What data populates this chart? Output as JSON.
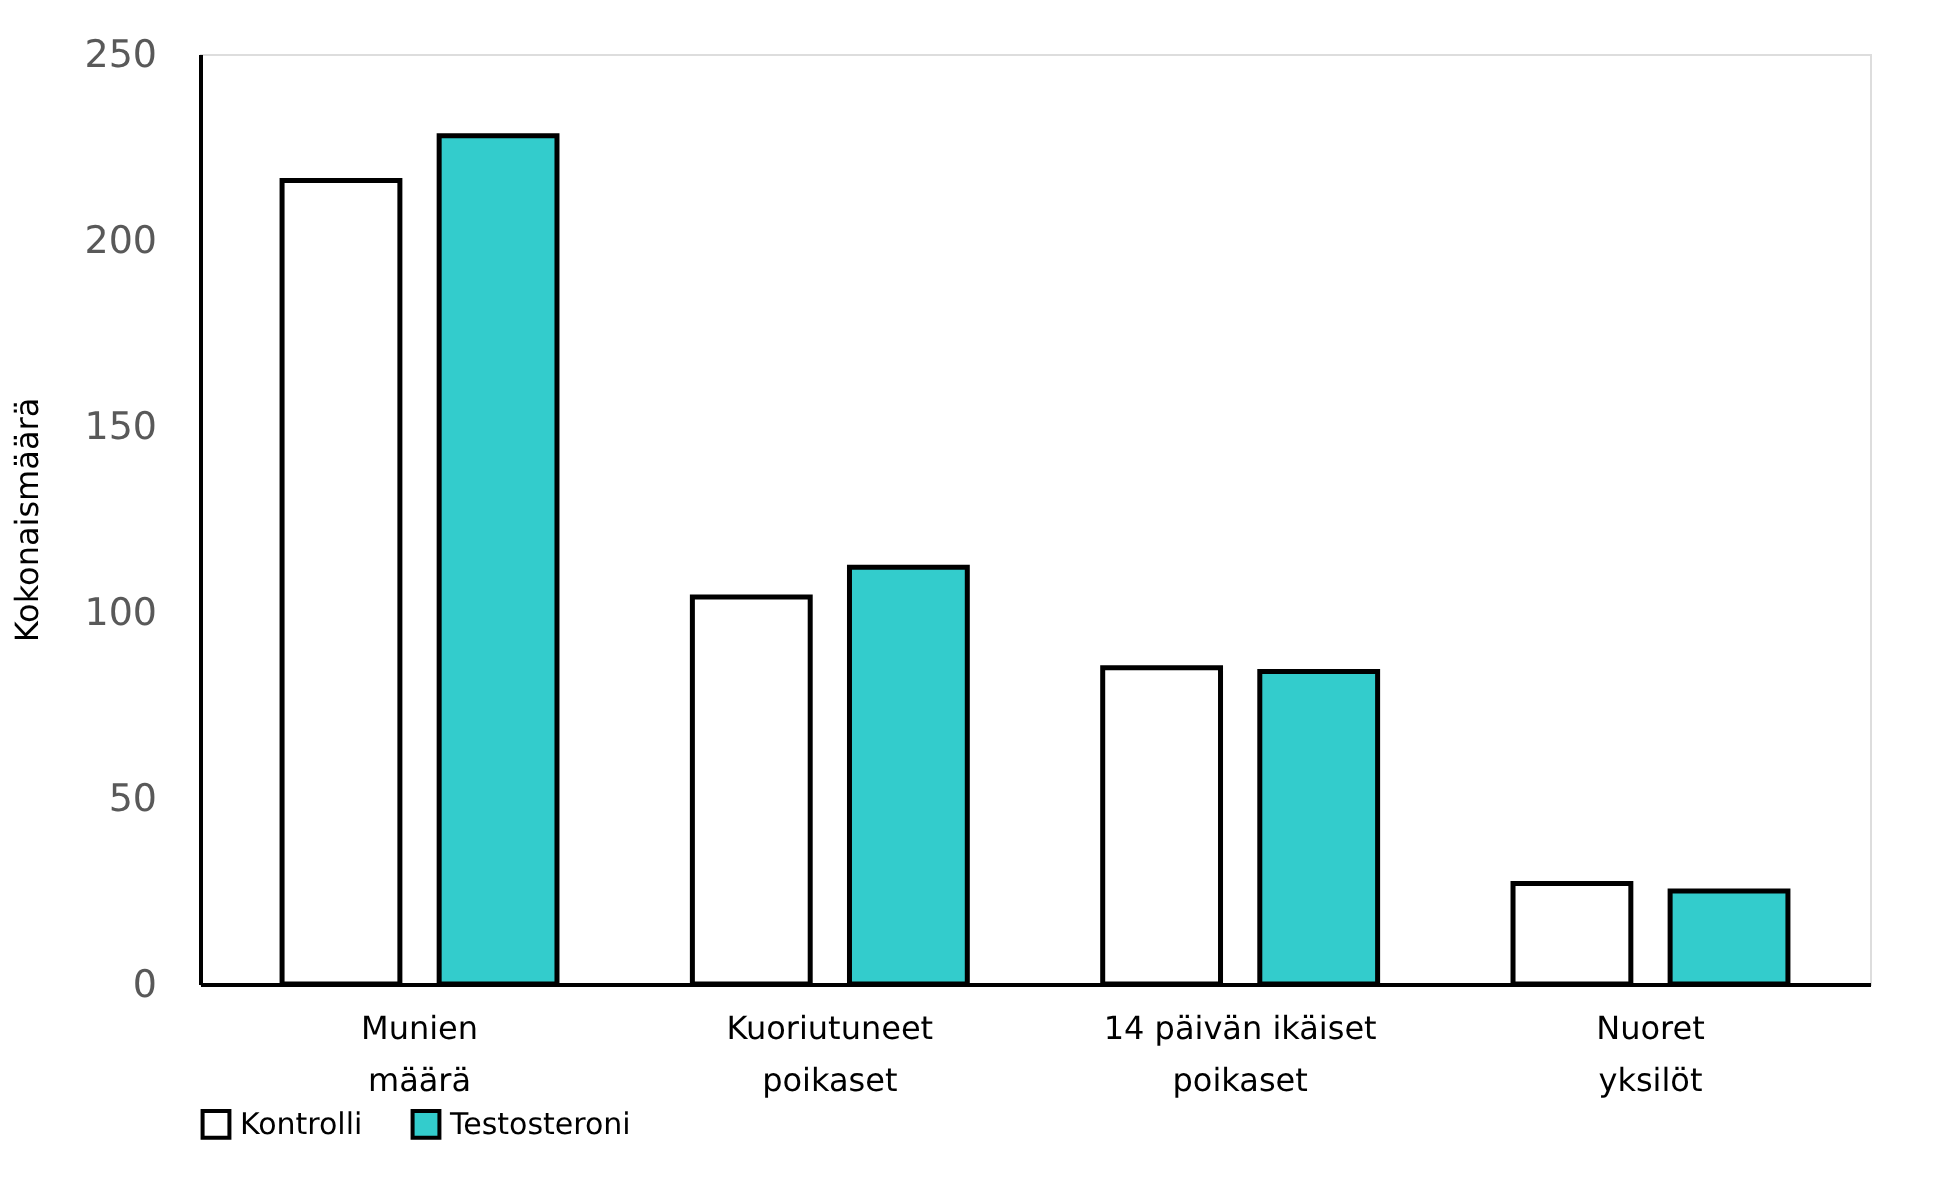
{
  "chart_data": {
    "type": "bar",
    "ylabel": "Kokonaismäärä",
    "categories": [
      "Munien määrä",
      "Kuoriutuneet poikaset",
      "14 päivän ikäiset poikaset",
      "Nuoret yksilöt"
    ],
    "series": [
      {
        "name": "Kontrolli",
        "color": "#ffffff",
        "values": [
          216,
          104,
          85,
          27
        ]
      },
      {
        "name": "Testosteroni",
        "color": "#33cccc",
        "values": [
          228,
          112,
          84,
          25
        ]
      }
    ],
    "ylim": [
      0,
      250
    ],
    "yticks": [
      0,
      50,
      100,
      150,
      200,
      250
    ],
    "grid": false,
    "legend": "bottom"
  }
}
